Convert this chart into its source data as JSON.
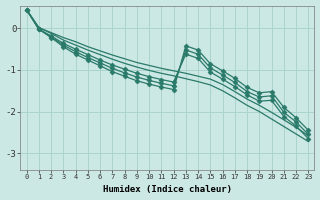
{
  "xlabel": "Humidex (Indice chaleur)",
  "bg_color": "#cce8e4",
  "grid_color": "#aad4cc",
  "line_color": "#2a7a6a",
  "xlim": [
    -0.5,
    23.5
  ],
  "ylim": [
    -3.4,
    0.55
  ],
  "yticks": [
    0,
    -1,
    -2,
    -3
  ],
  "xticks": [
    0,
    1,
    2,
    3,
    4,
    5,
    6,
    7,
    8,
    9,
    10,
    11,
    12,
    13,
    14,
    15,
    16,
    17,
    18,
    19,
    20,
    21,
    22,
    23
  ],
  "series": [
    {
      "y": [
        0.45,
        0.02,
        -0.1,
        -0.22,
        -0.32,
        -0.44,
        -0.54,
        -0.64,
        -0.73,
        -0.82,
        -0.89,
        -0.96,
        -1.02,
        -1.08,
        -1.15,
        -1.22,
        -1.35,
        -1.52,
        -1.7,
        -1.85,
        -2.02,
        -2.2,
        -2.38,
        -2.58
      ],
      "marker": false
    },
    {
      "y": [
        0.45,
        0.02,
        -0.12,
        -0.28,
        -0.4,
        -0.52,
        -0.63,
        -0.74,
        -0.84,
        -0.93,
        -1.01,
        -1.08,
        -1.14,
        -1.21,
        -1.28,
        -1.36,
        -1.5,
        -1.67,
        -1.85,
        -2.0,
        -2.18,
        -2.36,
        -2.54,
        -2.72
      ],
      "marker": false
    },
    {
      "y": [
        0.45,
        -0.02,
        -0.18,
        -0.36,
        -0.5,
        -0.63,
        -0.76,
        -0.88,
        -0.98,
        -1.08,
        -1.16,
        -1.23,
        -1.29,
        -0.62,
        -0.72,
        -1.05,
        -1.22,
        -1.4,
        -1.6,
        -1.75,
        -1.73,
        -2.12,
        -2.35,
        -2.65
      ],
      "marker": true
    },
    {
      "y": [
        0.45,
        -0.02,
        -0.2,
        -0.4,
        -0.56,
        -0.7,
        -0.83,
        -0.96,
        -1.07,
        -1.17,
        -1.25,
        -1.32,
        -1.38,
        -0.52,
        -0.62,
        -0.95,
        -1.12,
        -1.3,
        -1.52,
        -1.65,
        -1.62,
        -2.02,
        -2.25,
        -2.55
      ],
      "marker": true
    },
    {
      "y": [
        0.45,
        -0.02,
        -0.22,
        -0.44,
        -0.62,
        -0.76,
        -0.9,
        -1.04,
        -1.15,
        -1.26,
        -1.34,
        -1.41,
        -1.47,
        -0.42,
        -0.52,
        -0.85,
        -1.02,
        -1.2,
        -1.42,
        -1.55,
        -1.52,
        -1.9,
        -2.15,
        -2.45
      ],
      "marker": true
    }
  ]
}
